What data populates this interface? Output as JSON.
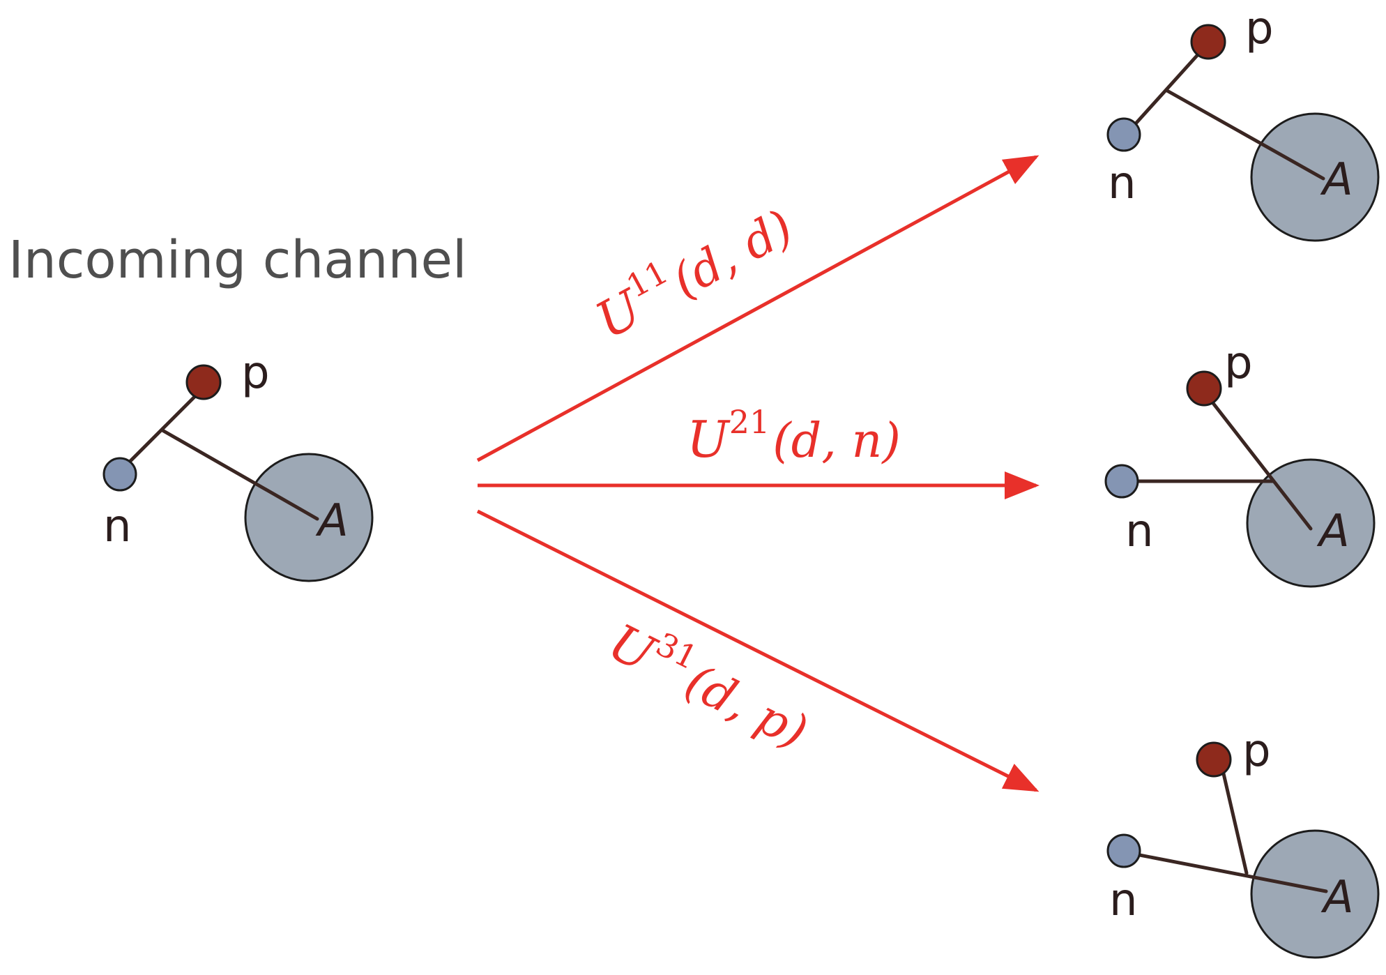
{
  "title": "Incoming channel",
  "labels": {
    "neutron": "n",
    "proton": "p",
    "nucleus": "A"
  },
  "channels": [
    {
      "symbol": "U",
      "superscript": "11",
      "arguments": "(d, d)"
    },
    {
      "symbol": "U",
      "superscript": "21",
      "arguments": "(d, n)"
    },
    {
      "symbol": "U",
      "superscript": "31",
      "arguments": "(d, p)"
    }
  ],
  "colors": {
    "arrow": "#e8302a",
    "proton": "#8e2a1c",
    "neutron": "#8495b3",
    "nucleus": "#9da8b5",
    "bond": "#3a2622",
    "title": "#4f4f4f"
  }
}
